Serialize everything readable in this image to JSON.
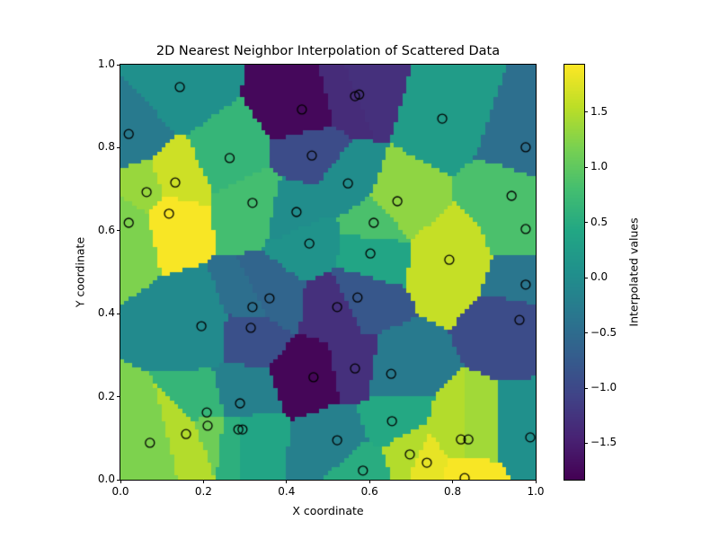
{
  "chart_data": {
    "type": "heatmap",
    "subtype": "nearest-neighbor interpolation (Voronoi) with scatter overlay",
    "title": "2D Nearest Neighbor Interpolation of Scattered Data",
    "xlabel": "X coordinate",
    "ylabel": "Y coordinate",
    "xlim": [
      0.0,
      1.0
    ],
    "ylim": [
      0.0,
      1.0
    ],
    "xticks": [
      "0.0",
      "0.2",
      "0.4",
      "0.6",
      "0.8",
      "1.0"
    ],
    "yticks": [
      "0.0",
      "0.2",
      "0.4",
      "0.6",
      "0.8",
      "1.0"
    ],
    "grid": false,
    "colormap": "viridis",
    "colorbar": {
      "label": "Interpolated values",
      "range": [
        -1.83,
        1.93
      ],
      "ticks": [
        "1.5",
        "1.0",
        "0.5",
        "0.0",
        "−0.5",
        "−1.0",
        "−1.5"
      ],
      "tick_values": [
        1.5,
        1.0,
        0.5,
        0.0,
        -0.5,
        -1.0,
        -1.5
      ]
    },
    "marker": {
      "shape": "open-circle",
      "edge_color": "#000000"
    },
    "points": [
      {
        "x": 0.143,
        "y": 0.946,
        "v": 0.05
      },
      {
        "x": 0.02,
        "y": 0.833,
        "v": -0.3
      },
      {
        "x": 0.437,
        "y": 0.892,
        "v": -1.75
      },
      {
        "x": 0.565,
        "y": 0.924,
        "v": -1.35
      },
      {
        "x": 0.575,
        "y": 0.928,
        "v": -1.3
      },
      {
        "x": 0.775,
        "y": 0.87,
        "v": 0.25
      },
      {
        "x": 0.976,
        "y": 0.801,
        "v": -0.45
      },
      {
        "x": 0.263,
        "y": 0.775,
        "v": 0.65
      },
      {
        "x": 0.461,
        "y": 0.781,
        "v": -0.95
      },
      {
        "x": 0.132,
        "y": 0.716,
        "v": 1.65
      },
      {
        "x": 0.063,
        "y": 0.693,
        "v": 1.35
      },
      {
        "x": 0.548,
        "y": 0.714,
        "v": 0.0
      },
      {
        "x": 0.318,
        "y": 0.667,
        "v": 0.8
      },
      {
        "x": 0.667,
        "y": 0.671,
        "v": 1.3
      },
      {
        "x": 0.942,
        "y": 0.684,
        "v": 0.85
      },
      {
        "x": 0.02,
        "y": 0.619,
        "v": 1.2
      },
      {
        "x": 0.117,
        "y": 0.641,
        "v": 1.9
      },
      {
        "x": 0.424,
        "y": 0.645,
        "v": 0.0
      },
      {
        "x": 0.61,
        "y": 0.619,
        "v": 0.85
      },
      {
        "x": 0.976,
        "y": 0.604,
        "v": 0.85
      },
      {
        "x": 0.455,
        "y": 0.569,
        "v": 0.1
      },
      {
        "x": 0.602,
        "y": 0.545,
        "v": 0.4
      },
      {
        "x": 0.792,
        "y": 0.53,
        "v": 1.6
      },
      {
        "x": 0.976,
        "y": 0.47,
        "v": -0.35
      },
      {
        "x": 0.359,
        "y": 0.437,
        "v": -0.6
      },
      {
        "x": 0.571,
        "y": 0.439,
        "v": -0.8
      },
      {
        "x": 0.318,
        "y": 0.416,
        "v": -0.45
      },
      {
        "x": 0.522,
        "y": 0.416,
        "v": -1.3
      },
      {
        "x": 0.961,
        "y": 0.385,
        "v": -0.95
      },
      {
        "x": 0.195,
        "y": 0.37,
        "v": -0.05
      },
      {
        "x": 0.314,
        "y": 0.366,
        "v": -0.9
      },
      {
        "x": 0.565,
        "y": 0.268,
        "v": -1.3
      },
      {
        "x": 0.465,
        "y": 0.247,
        "v": -1.78
      },
      {
        "x": 0.652,
        "y": 0.255,
        "v": -0.3
      },
      {
        "x": 0.288,
        "y": 0.184,
        "v": -0.2
      },
      {
        "x": 0.208,
        "y": 0.162,
        "v": 0.65
      },
      {
        "x": 0.654,
        "y": 0.141,
        "v": 0.45
      },
      {
        "x": 0.21,
        "y": 0.13,
        "v": 1.1
      },
      {
        "x": 0.284,
        "y": 0.121,
        "v": 0.55
      },
      {
        "x": 0.294,
        "y": 0.121,
        "v": 0.4
      },
      {
        "x": 0.158,
        "y": 0.11,
        "v": 1.5
      },
      {
        "x": 0.071,
        "y": 0.089,
        "v": 1.2
      },
      {
        "x": 0.522,
        "y": 0.095,
        "v": -0.2
      },
      {
        "x": 0.82,
        "y": 0.097,
        "v": 1.5
      },
      {
        "x": 0.838,
        "y": 0.097,
        "v": 1.4
      },
      {
        "x": 0.987,
        "y": 0.102,
        "v": 0.05
      },
      {
        "x": 0.697,
        "y": 0.061,
        "v": 1.5
      },
      {
        "x": 0.738,
        "y": 0.041,
        "v": 1.8
      },
      {
        "x": 0.584,
        "y": 0.022,
        "v": 0.5
      },
      {
        "x": 0.829,
        "y": 0.004,
        "v": 1.9
      }
    ]
  }
}
